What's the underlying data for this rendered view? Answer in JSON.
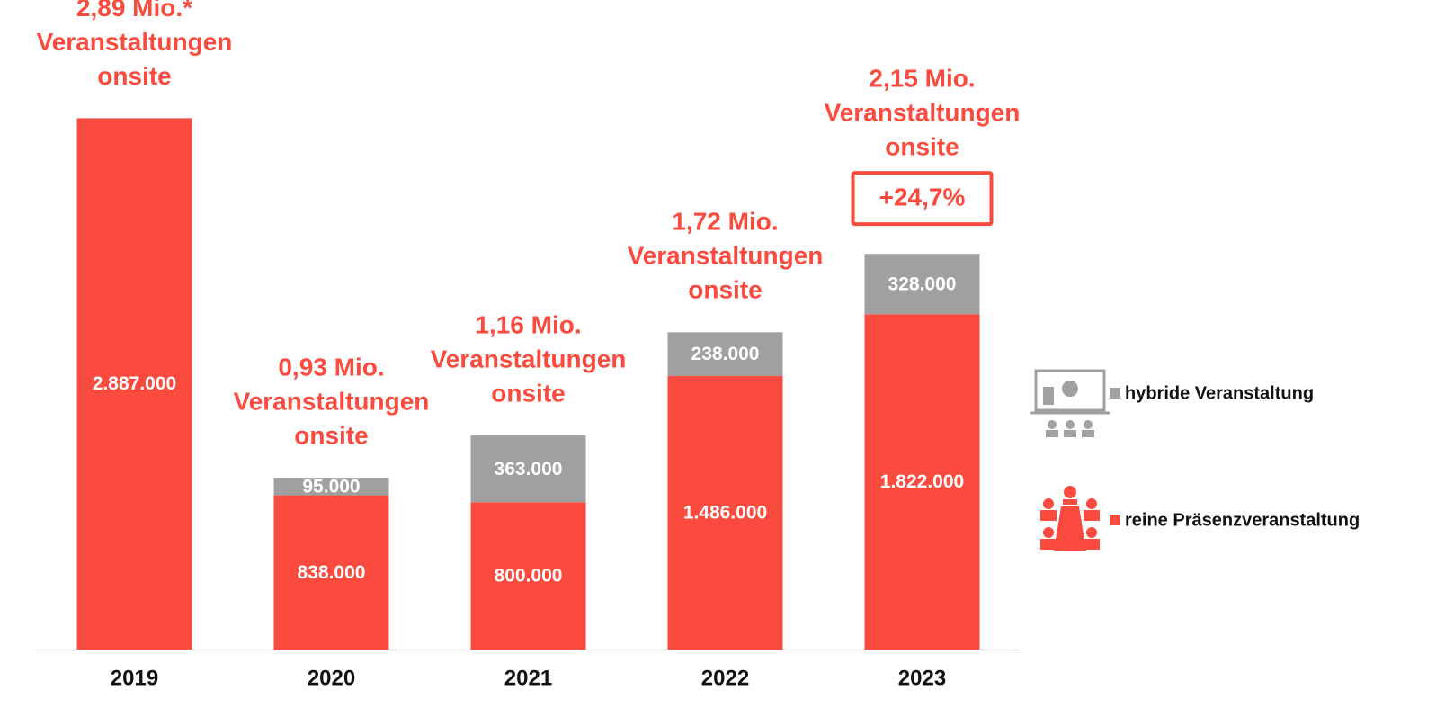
{
  "chart_data": {
    "type": "stacked_bar",
    "categories": [
      "2019",
      "2020",
      "2021",
      "2022",
      "2023"
    ],
    "series": [
      {
        "name": "reine Präsenzveranstaltung",
        "color": "#fa4b3e",
        "values": [
          2887000,
          838000,
          800000,
          1486000,
          1822000
        ],
        "value_labels": [
          "2.887.000",
          "838.000",
          "800.000",
          "1.486.000",
          "1.822.000"
        ]
      },
      {
        "name": "hybride Veranstaltung",
        "color": "#a0a0a0",
        "values": [
          null,
          95000,
          363000,
          238000,
          328000
        ],
        "value_labels": [
          null,
          "95.000",
          "363.000",
          "238.000",
          "328.000"
        ]
      }
    ],
    "total_labels": [
      [
        "2,89 Mio.*",
        "Veranstaltungen",
        "onsite"
      ],
      [
        "0,93 Mio.",
        "Veranstaltungen",
        "onsite"
      ],
      [
        "1,16 Mio.",
        "Veranstaltungen",
        "onsite"
      ],
      [
        "1,72 Mio.",
        "Veranstaltungen",
        "onsite"
      ],
      [
        "2,15 Mio.",
        "Veranstaltungen",
        "onsite"
      ]
    ],
    "callouts": [
      null,
      null,
      null,
      null,
      "+24,7%"
    ],
    "ylim": [
      0,
      3500000
    ],
    "legend": "right"
  }
}
